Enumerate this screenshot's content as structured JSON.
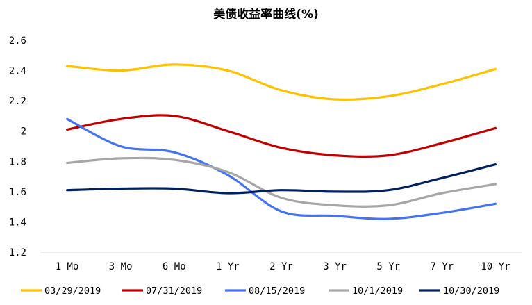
{
  "chart_data": {
    "type": "line",
    "title": "美债收益率曲线(%)",
    "xlabel": "",
    "ylabel": "",
    "categories": [
      "1 Mo",
      "3 Mo",
      "6 Mo",
      "1 Yr",
      "2 Yr",
      "3 Yr",
      "5 Yr",
      "7 Yr",
      "10 Yr"
    ],
    "ylim": [
      1.2,
      2.6
    ],
    "yticks": [
      "1.2",
      "1.4",
      "1.6",
      "1.8",
      "2",
      "2.2",
      "2.4",
      "2.6"
    ],
    "grid": false,
    "legend_position": "bottom",
    "series": [
      {
        "name": "03/29/2019",
        "color": "#FFC000",
        "values": [
          2.43,
          2.4,
          2.44,
          2.4,
          2.27,
          2.21,
          2.23,
          2.31,
          2.41
        ]
      },
      {
        "name": "07/31/2019",
        "color": "#C00000",
        "values": [
          2.01,
          2.08,
          2.1,
          2.0,
          1.89,
          1.84,
          1.84,
          1.92,
          2.02
        ]
      },
      {
        "name": "08/15/2019",
        "color": "#4472F0",
        "values": [
          2.08,
          1.9,
          1.86,
          1.71,
          1.47,
          1.44,
          1.42,
          1.46,
          1.52
        ]
      },
      {
        "name": "10/1/2019",
        "color": "#A6A6A6",
        "values": [
          1.79,
          1.82,
          1.81,
          1.73,
          1.56,
          1.51,
          1.51,
          1.59,
          1.65
        ]
      },
      {
        "name": "10/30/2019",
        "color": "#002060",
        "values": [
          1.61,
          1.62,
          1.62,
          1.59,
          1.61,
          1.6,
          1.61,
          1.69,
          1.78
        ]
      }
    ]
  }
}
